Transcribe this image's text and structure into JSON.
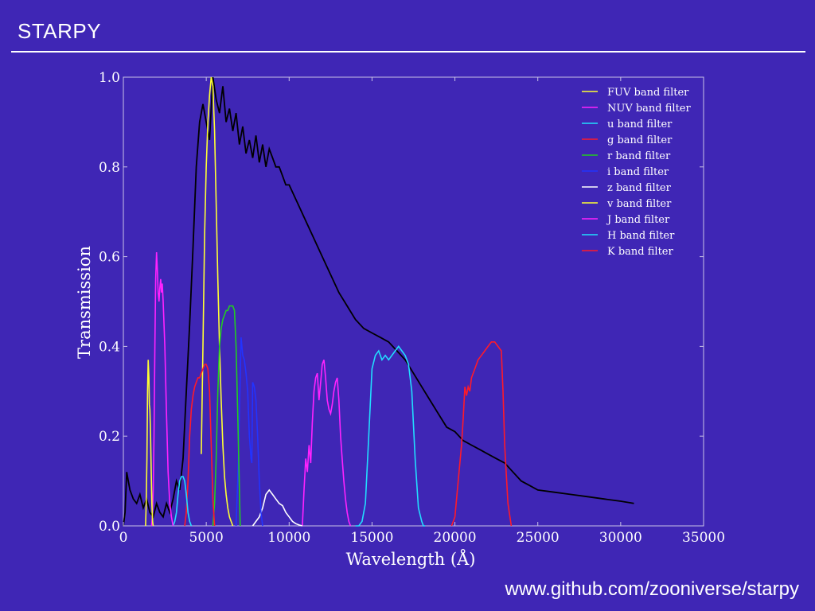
{
  "slide": {
    "title": "STARPY",
    "footer": "www.github.com/zooniverse/starpy"
  },
  "colors": {
    "background": "#3f26b5",
    "text": "#ffffff"
  },
  "chart_data": {
    "type": "line",
    "xlabel": "Wavelength (Å)",
    "ylabel": "Transmission",
    "xlim": [
      0,
      35000
    ],
    "ylim": [
      0,
      1.0
    ],
    "xticks": [
      "0",
      "5000",
      "10000",
      "15000",
      "20000",
      "25000",
      "30000",
      "35000"
    ],
    "yticks": [
      "0.0",
      "0.2",
      "0.4",
      "0.6",
      "0.8",
      "1.0"
    ],
    "grid": false,
    "legend_position": "top-right",
    "series": [
      {
        "name": "FUV band filter",
        "color": "#ffff33",
        "x": [
          1340,
          1380,
          1420,
          1460,
          1500,
          1540,
          1570,
          1600,
          1640,
          1680,
          1720,
          1760,
          1800
        ],
        "y": [
          0.0,
          0.05,
          0.15,
          0.3,
          0.37,
          0.33,
          0.27,
          0.26,
          0.2,
          0.12,
          0.05,
          0.01,
          0.0
        ]
      },
      {
        "name": "NUV band filter",
        "color": "#ff22ff",
        "x": [
          1700,
          1750,
          1800,
          1850,
          1900,
          1950,
          2000,
          2050,
          2100,
          2150,
          2200,
          2250,
          2300,
          2350,
          2400,
          2500,
          2600,
          2700,
          2800,
          2900,
          3000
        ],
        "y": [
          0.0,
          0.02,
          0.08,
          0.2,
          0.4,
          0.55,
          0.61,
          0.57,
          0.52,
          0.5,
          0.53,
          0.55,
          0.52,
          0.54,
          0.5,
          0.4,
          0.25,
          0.12,
          0.05,
          0.02,
          0.0
        ]
      },
      {
        "name": "u band filter",
        "color": "#22ddff",
        "x": [
          3000,
          3100,
          3200,
          3300,
          3400,
          3500,
          3600,
          3700,
          3800,
          3900,
          4000,
          4100
        ],
        "y": [
          0.0,
          0.01,
          0.03,
          0.07,
          0.1,
          0.11,
          0.11,
          0.1,
          0.07,
          0.03,
          0.01,
          0.0
        ]
      },
      {
        "name": "g band filter",
        "color": "#ff1a2a",
        "x": [
          3700,
          3800,
          3900,
          4000,
          4100,
          4200,
          4300,
          4400,
          4500,
          4600,
          4700,
          4800,
          4900,
          5000,
          5100,
          5200,
          5300,
          5400,
          5500
        ],
        "y": [
          0.0,
          0.03,
          0.1,
          0.2,
          0.26,
          0.29,
          0.31,
          0.32,
          0.33,
          0.33,
          0.34,
          0.35,
          0.36,
          0.36,
          0.35,
          0.3,
          0.18,
          0.06,
          0.0
        ]
      },
      {
        "name": "r band filter",
        "color": "#22cc22",
        "x": [
          5400,
          5500,
          5600,
          5700,
          5800,
          5900,
          6000,
          6100,
          6200,
          6300,
          6400,
          6500,
          6600,
          6700,
          6800,
          6900,
          7000,
          7050
        ],
        "y": [
          0.0,
          0.05,
          0.15,
          0.3,
          0.4,
          0.44,
          0.46,
          0.47,
          0.48,
          0.48,
          0.49,
          0.49,
          0.49,
          0.48,
          0.4,
          0.25,
          0.08,
          0.0
        ]
      },
      {
        "name": "i band filter",
        "color": "#2233ff",
        "x": [
          6800,
          6900,
          7000,
          7100,
          7200,
          7300,
          7400,
          7500,
          7600,
          7700,
          7750,
          7800,
          7900,
          8000,
          8100,
          8200,
          8300,
          8400
        ],
        "y": [
          0.0,
          0.1,
          0.25,
          0.42,
          0.38,
          0.37,
          0.34,
          0.3,
          0.2,
          0.15,
          0.14,
          0.32,
          0.31,
          0.28,
          0.2,
          0.1,
          0.03,
          0.0
        ]
      },
      {
        "name": "z band filter",
        "color": "#ffffff",
        "x": [
          7800,
          8000,
          8200,
          8400,
          8600,
          8800,
          9000,
          9200,
          9400,
          9600,
          9800,
          10000,
          10200,
          10400,
          10600,
          10800
        ],
        "y": [
          0.0,
          0.01,
          0.02,
          0.04,
          0.07,
          0.08,
          0.07,
          0.06,
          0.05,
          0.045,
          0.03,
          0.02,
          0.01,
          0.005,
          0.002,
          0.0
        ]
      },
      {
        "name": "v band filter",
        "color": "#ffff33",
        "x": [
          4700,
          4800,
          4900,
          5000,
          5100,
          5200,
          5300,
          5400,
          5500,
          5600,
          5700,
          5800,
          5900,
          6000,
          6100,
          6200,
          6300,
          6400,
          6500,
          6600
        ],
        "y": [
          0.16,
          0.4,
          0.65,
          0.8,
          0.9,
          0.96,
          1.0,
          0.98,
          0.88,
          0.72,
          0.55,
          0.4,
          0.28,
          0.18,
          0.11,
          0.07,
          0.04,
          0.02,
          0.01,
          0.0
        ]
      },
      {
        "name": "J band filter",
        "color": "#ff22ff",
        "x": [
          10800,
          10900,
          11000,
          11100,
          11200,
          11300,
          11400,
          11500,
          11600,
          11700,
          11800,
          11900,
          12000,
          12100,
          12200,
          12300,
          12400,
          12500,
          12600,
          12700,
          12800,
          12900,
          13000,
          13100,
          13200,
          13300,
          13400,
          13500,
          13600,
          13700
        ],
        "y": [
          0.0,
          0.08,
          0.15,
          0.12,
          0.18,
          0.14,
          0.23,
          0.3,
          0.33,
          0.34,
          0.28,
          0.32,
          0.36,
          0.37,
          0.33,
          0.28,
          0.26,
          0.25,
          0.27,
          0.3,
          0.32,
          0.33,
          0.28,
          0.2,
          0.15,
          0.1,
          0.06,
          0.03,
          0.01,
          0.0
        ]
      },
      {
        "name": "H band filter",
        "color": "#22ddff",
        "x": [
          14000,
          14200,
          14400,
          14600,
          14800,
          15000,
          15200,
          15400,
          15600,
          15800,
          16000,
          16200,
          16400,
          16600,
          16800,
          17000,
          17200,
          17400,
          17600,
          17800,
          18000,
          18100,
          18200
        ],
        "y": [
          0.0,
          0.0,
          0.01,
          0.05,
          0.2,
          0.35,
          0.38,
          0.39,
          0.37,
          0.38,
          0.37,
          0.38,
          0.39,
          0.4,
          0.39,
          0.38,
          0.36,
          0.3,
          0.15,
          0.04,
          0.01,
          0.0,
          0.0
        ]
      },
      {
        "name": "K band filter",
        "color": "#ff1a2a",
        "x": [
          19800,
          20000,
          20200,
          20400,
          20500,
          20600,
          20700,
          20800,
          20900,
          21000,
          21200,
          21400,
          21600,
          21800,
          22000,
          22200,
          22400,
          22600,
          22800,
          22900,
          23000,
          23200,
          23400
        ],
        "y": [
          0.0,
          0.02,
          0.1,
          0.18,
          0.24,
          0.31,
          0.29,
          0.31,
          0.3,
          0.33,
          0.35,
          0.37,
          0.38,
          0.39,
          0.4,
          0.41,
          0.41,
          0.4,
          0.39,
          0.3,
          0.18,
          0.05,
          0.0
        ]
      },
      {
        "name": "",
        "color": "#000000",
        "x": [
          0,
          100,
          200,
          300,
          400,
          600,
          800,
          1000,
          1200,
          1400,
          1600,
          1800,
          2000,
          2200,
          2400,
          2600,
          2800,
          3000,
          3200,
          3400,
          3600,
          3800,
          4000,
          4200,
          4400,
          4600,
          4800,
          5000,
          5200,
          5400,
          5600,
          5800,
          6000,
          6200,
          6400,
          6600,
          6800,
          7000,
          7200,
          7400,
          7600,
          7800,
          8000,
          8200,
          8400,
          8600,
          8800,
          9000,
          9200,
          9400,
          9600,
          9800,
          10000,
          10500,
          11000,
          11500,
          12000,
          12500,
          13000,
          13500,
          14000,
          14500,
          15000,
          15500,
          16000,
          16500,
          17000,
          17500,
          18000,
          18500,
          19000,
          19500,
          20000,
          20500,
          21000,
          21500,
          22000,
          22500,
          23000,
          23500,
          24000,
          24500,
          25000,
          26000,
          27000,
          28000,
          29000,
          30000,
          30800
        ],
        "y": [
          0.0,
          0.03,
          0.12,
          0.1,
          0.08,
          0.06,
          0.05,
          0.07,
          0.04,
          0.06,
          0.03,
          0.02,
          0.05,
          0.03,
          0.02,
          0.05,
          0.03,
          0.06,
          0.1,
          0.08,
          0.15,
          0.3,
          0.45,
          0.62,
          0.8,
          0.9,
          0.94,
          0.9,
          0.86,
          1.0,
          0.95,
          0.92,
          0.98,
          0.9,
          0.93,
          0.88,
          0.92,
          0.85,
          0.89,
          0.83,
          0.86,
          0.82,
          0.87,
          0.81,
          0.85,
          0.8,
          0.84,
          0.82,
          0.8,
          0.8,
          0.78,
          0.76,
          0.76,
          0.72,
          0.68,
          0.64,
          0.6,
          0.56,
          0.52,
          0.49,
          0.46,
          0.44,
          0.43,
          0.42,
          0.41,
          0.39,
          0.37,
          0.34,
          0.31,
          0.28,
          0.25,
          0.22,
          0.21,
          0.19,
          0.18,
          0.17,
          0.16,
          0.15,
          0.14,
          0.12,
          0.1,
          0.09,
          0.08,
          0.075,
          0.07,
          0.065,
          0.06,
          0.055,
          0.05
        ]
      }
    ]
  }
}
